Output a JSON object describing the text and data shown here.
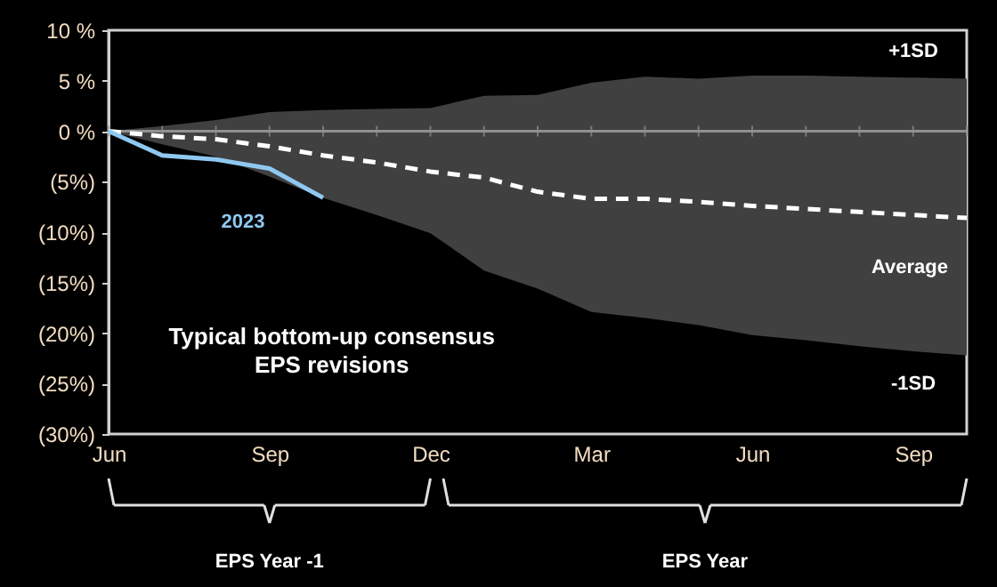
{
  "chart_data": {
    "type": "line",
    "categories": [
      "Jun",
      null,
      null,
      "Sep",
      null,
      null,
      "Dec",
      null,
      null,
      "Mar",
      null,
      null,
      "Jun",
      null,
      null,
      "Sep",
      null
    ],
    "ylim": [
      -30,
      10
    ],
    "yticks": [
      {
        "value": 10,
        "label": "10 %"
      },
      {
        "value": 5,
        "label": "5 %"
      },
      {
        "value": 0,
        "label": "0 %"
      },
      {
        "value": -5,
        "label": "(5%)"
      },
      {
        "value": -10,
        "label": "(10%)"
      },
      {
        "value": -15,
        "label": "(15%)"
      },
      {
        "value": -20,
        "label": "(20%)"
      },
      {
        "value": -25,
        "label": "(25%)"
      },
      {
        "value": -30,
        "label": "(30%)"
      }
    ],
    "series": [
      {
        "name": "Average",
        "color": "#ffffff",
        "line_style": "dashed",
        "values": [
          0,
          -0.5,
          -0.8,
          -1.5,
          -2.4,
          -3.1,
          -4.0,
          -4.6,
          -6.0,
          -6.7,
          -6.7,
          -7.0,
          -7.4,
          -7.7,
          -8.0,
          -8.3,
          -8.6
        ],
        "lower": [
          0,
          -1.3,
          -2.5,
          -4.5,
          -6.6,
          -8.3,
          -10.1,
          -13.8,
          -15.6,
          -17.9,
          -18.5,
          -19.2,
          -20.2,
          -20.7,
          -21.3,
          -21.8,
          -22.2
        ],
        "upper": [
          0,
          0.5,
          1.1,
          1.9,
          2.1,
          2.2,
          2.3,
          3.5,
          3.6,
          4.8,
          5.4,
          5.2,
          5.5,
          5.5,
          5.4,
          5.3,
          5.2
        ]
      },
      {
        "name": "2023",
        "color": "#8ec8f0",
        "line_style": "solid",
        "values": [
          0,
          -2.4,
          -2.8,
          -3.7,
          -6.6,
          null,
          null,
          null,
          null,
          null,
          null,
          null,
          null,
          null,
          null,
          null,
          null
        ]
      }
    ],
    "ref_lines": [
      {
        "axis": "y",
        "value": 0,
        "color": "#909090"
      }
    ],
    "annotations": [
      "+1SD",
      "-1SD",
      "Typical bottom-up consensus\nEPS revisions",
      "EPS Year -1",
      "EPS Year"
    ],
    "grid": false,
    "marker": "none"
  }
}
